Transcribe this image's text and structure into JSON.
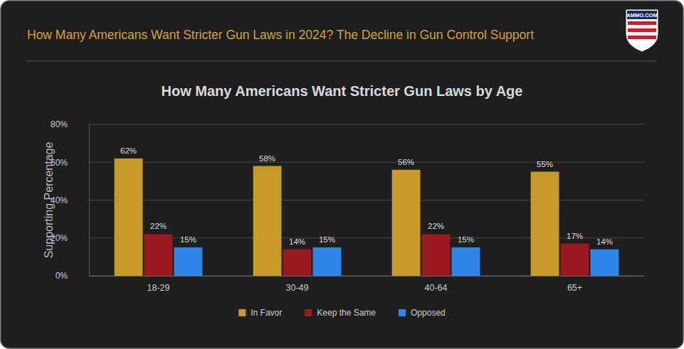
{
  "header": {
    "title": "How Many Americans Want Stricter Gun Laws in 2024? The Decline in Gun Control Support",
    "logo": "AMMO.COM"
  },
  "chart_data": {
    "type": "bar",
    "title": "How Many Americans Want Stricter Gun Laws by Age",
    "y_label": "Supporting Percentage",
    "categories": [
      "18-29",
      "30-49",
      "40-64",
      "65+"
    ],
    "series": [
      {
        "name": "In Favor",
        "color": "#c89a2a",
        "values": [
          62,
          58,
          56,
          55
        ],
        "value_labels": [
          "62%",
          "58%",
          "56%",
          "55%"
        ]
      },
      {
        "name": "Keep the Same",
        "color": "#9b1a1f",
        "values": [
          22,
          14,
          22,
          17
        ],
        "value_labels": [
          "22%",
          "14%",
          "22%",
          "17%"
        ]
      },
      {
        "name": "Opposed",
        "color": "#2f86ea",
        "values": [
          15,
          15,
          15,
          14
        ],
        "value_labels": [
          "15%",
          "15%",
          "15%",
          "14%"
        ]
      }
    ],
    "ylim": [
      0,
      80
    ],
    "yticks": [
      {
        "value": 0,
        "label": "0%"
      },
      {
        "value": 20,
        "label": "20%"
      },
      {
        "value": 40,
        "label": "40%"
      },
      {
        "value": 60,
        "label": "60%"
      },
      {
        "value": 80,
        "label": "80%"
      }
    ],
    "grid": true,
    "data_labels": true,
    "legend": "bottom"
  }
}
